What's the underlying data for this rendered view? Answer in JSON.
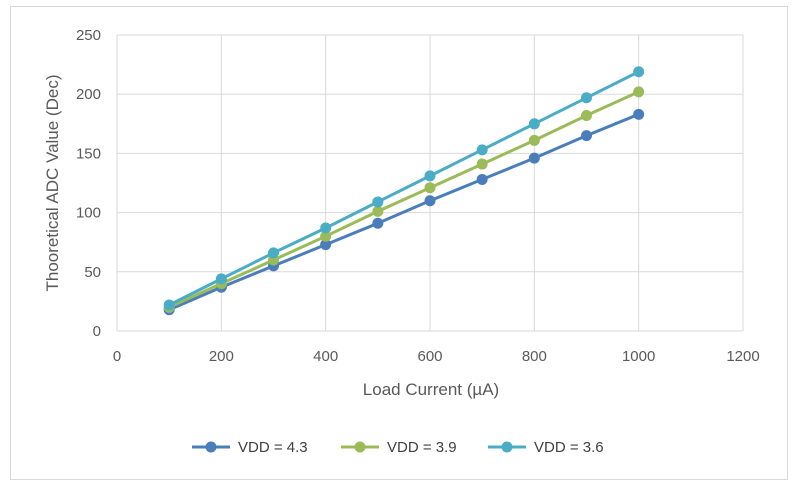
{
  "chart_data": {
    "type": "line",
    "title": "",
    "xlabel": "Load Current (µA)",
    "ylabel": "Thooretical ADC Value (Dec)",
    "xlim": [
      0,
      1200
    ],
    "ylim": [
      0,
      250
    ],
    "x_ticks": [
      "0",
      "200",
      "400",
      "600",
      "800",
      "1000",
      "1200"
    ],
    "y_ticks": [
      "0",
      "50",
      "100",
      "150",
      "200",
      "250"
    ],
    "grid": true,
    "legend_position": "bottom",
    "x": [
      100,
      200,
      300,
      400,
      500,
      600,
      700,
      800,
      900,
      1000
    ],
    "series": [
      {
        "name": "VDD = 4.3",
        "color": "#4a7ebb",
        "values": [
          18,
          37,
          55,
          73,
          91,
          110,
          128,
          146,
          165,
          183
        ]
      },
      {
        "name": "VDD = 3.9",
        "color": "#9bbb59",
        "values": [
          20,
          40,
          60,
          80,
          101,
          121,
          141,
          161,
          182,
          202
        ]
      },
      {
        "name": "VDD = 3.6",
        "color": "#4bacc6",
        "values": [
          22,
          44,
          66,
          87,
          109,
          131,
          153,
          175,
          197,
          219
        ]
      }
    ]
  }
}
